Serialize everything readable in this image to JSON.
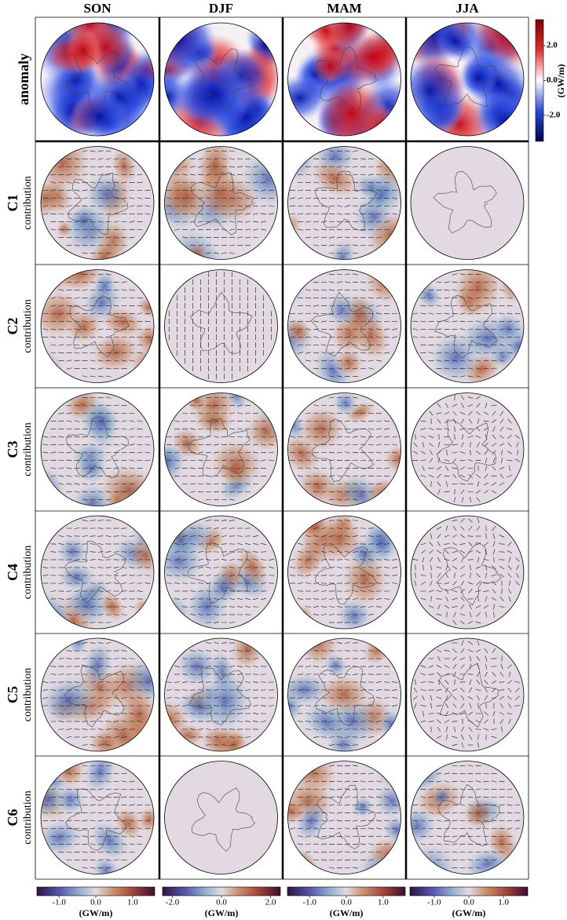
{
  "columns": [
    "SON",
    "DJF",
    "MAM",
    "JJA"
  ],
  "rows": [
    {
      "label": "anomaly"
    },
    {
      "label": "C1",
      "sublabel": "contribution"
    },
    {
      "label": "C2",
      "sublabel": "contribution"
    },
    {
      "label": "C3",
      "sublabel": "contribution"
    },
    {
      "label": "C4",
      "sublabel": "contribution"
    },
    {
      "label": "C5",
      "sublabel": "contribution"
    },
    {
      "label": "C6",
      "sublabel": "contribution"
    }
  ],
  "top_colorbar": {
    "unit": "(GW/m)",
    "lim": [
      -3.5,
      3.5
    ],
    "ticks": [
      {
        "value": 2,
        "label": "2.0"
      },
      {
        "value": 0,
        "label": "0.0"
      },
      {
        "value": -2,
        "label": "-2.0"
      }
    ]
  },
  "bottom_colorbars": [
    {
      "unit": "(GW/m)",
      "lim": [
        -1.6,
        1.6
      ],
      "ticks": [
        {
          "value": -1,
          "label": "-1.0"
        },
        {
          "value": 0,
          "label": "0.0"
        },
        {
          "value": 1,
          "label": "1.0"
        }
      ]
    },
    {
      "unit": "(GW/m)",
      "lim": [
        -2.4,
        2.4
      ],
      "ticks": [
        {
          "value": -2,
          "label": "-2.0"
        },
        {
          "value": 0,
          "label": "0.0"
        },
        {
          "value": 2,
          "label": "2.0"
        }
      ]
    },
    {
      "unit": "(GW/m)",
      "lim": [
        -1.6,
        1.6
      ],
      "ticks": [
        {
          "value": -1,
          "label": "-1.0"
        },
        {
          "value": 0,
          "label": "0.0"
        },
        {
          "value": 1,
          "label": "1.0"
        }
      ]
    },
    {
      "unit": "(GW/m)",
      "lim": [
        -1.7,
        1.7
      ],
      "ticks": [
        {
          "value": -1,
          "label": "-1.0"
        },
        {
          "value": 0,
          "label": "0.0"
        },
        {
          "value": 1,
          "label": "1.0"
        }
      ]
    }
  ]
}
